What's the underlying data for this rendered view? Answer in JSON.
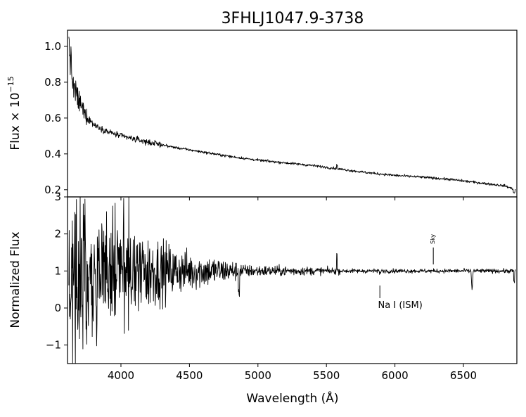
{
  "chart_data": {
    "title": "3FHLJ1047.9-3738",
    "xlabel": "Wavelength (Å)",
    "x_ticks": [
      4000,
      4500,
      5000,
      5500,
      6000,
      6500
    ],
    "x_tick_labels": [
      "4000",
      "4500",
      "5000",
      "5500",
      "6000",
      "6500"
    ],
    "xlim": [
      3610,
      6890
    ],
    "panels": [
      {
        "type": "line",
        "ylabel_base": "Flux × 10",
        "ylabel_exp": "−15",
        "ylim": [
          0.16,
          1.09
        ],
        "y_ticks": [
          0.2,
          0.4,
          0.6,
          0.8,
          1.0
        ],
        "y_tick_labels": [
          "0.2",
          "0.4",
          "0.6",
          "0.8",
          "1.0"
        ],
        "series": [
          {
            "x": [
              3620,
              3650,
              3700,
              3750,
              3800,
              3900,
              4000,
              4200,
              4400,
              4600,
              4800,
              5000,
              5200,
              5400,
              5600,
              5800,
              6000,
              6200,
              6400,
              6600,
              6800,
              6880
            ],
            "y": [
              1.02,
              0.78,
              0.68,
              0.61,
              0.565,
              0.525,
              0.5,
              0.465,
              0.435,
              0.41,
              0.385,
              0.365,
              0.35,
              0.335,
              0.315,
              0.295,
              0.28,
              0.27,
              0.258,
              0.24,
              0.222,
              0.2
            ]
          }
        ]
      },
      {
        "type": "line",
        "ylabel": "Normalized Flux",
        "ylim": [
          -1.5,
          3.0
        ],
        "y_ticks": [
          -1,
          0,
          1,
          2,
          3
        ],
        "y_tick_labels": [
          "−1",
          "0",
          "1",
          "2",
          "3"
        ],
        "series": [
          {
            "x": [
              3620,
              4000,
              4200,
              4500,
              4800,
              5000,
              5500,
              6000,
              6500,
              6880
            ],
            "y": [
              1.0,
              1.0,
              1.0,
              1.0,
              1.0,
              1.0,
              1.0,
              1.0,
              1.0,
              1.0
            ]
          }
        ],
        "annotations": [
          {
            "text": "Na I (ISM)",
            "x": 5890
          },
          {
            "text": "Sky",
            "x": 6280
          }
        ]
      }
    ],
    "grid": false,
    "legend": "none"
  }
}
